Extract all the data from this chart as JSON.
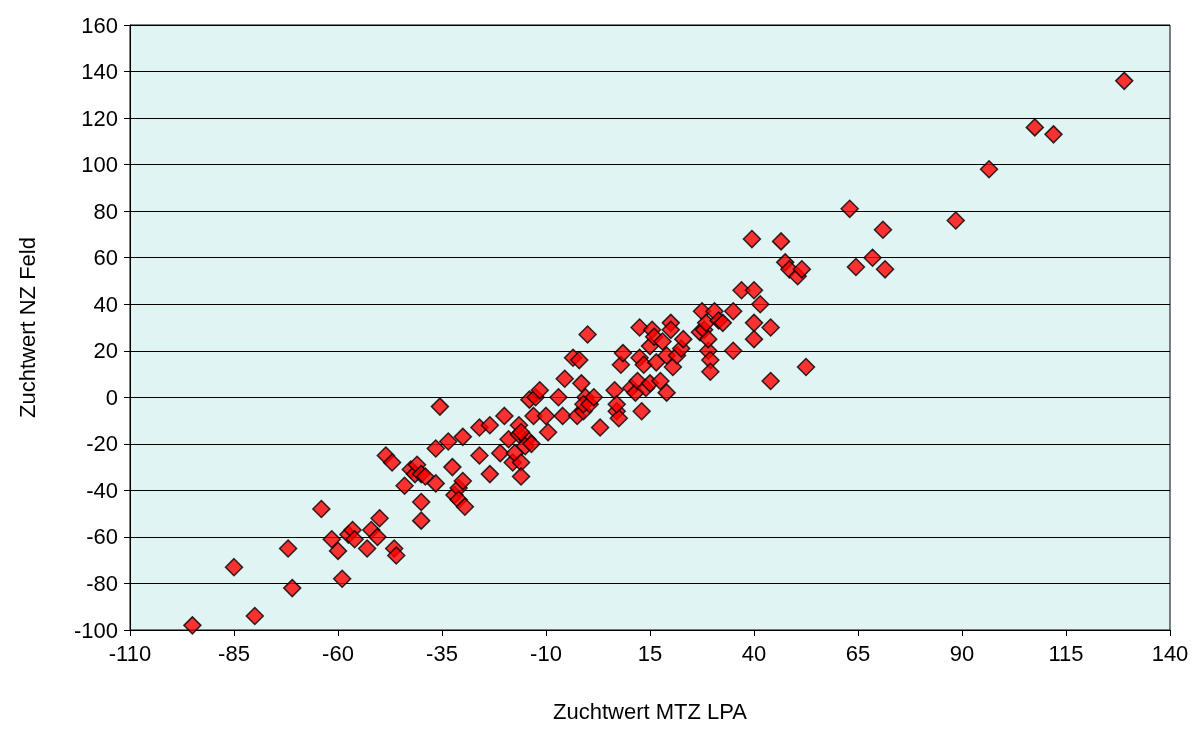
{
  "chart_data": {
    "type": "scatter",
    "xlabel": "Zuchtwert MTZ LPA",
    "ylabel": "Zuchtwert NZ Feld",
    "xlim": [
      -110,
      140
    ],
    "xticks": [
      -110,
      -85,
      -60,
      -35,
      -10,
      15,
      40,
      65,
      90,
      115,
      140
    ],
    "ylim": [
      -100,
      160
    ],
    "yticks": [
      -100,
      -80,
      -60,
      -40,
      -20,
      0,
      20,
      40,
      60,
      80,
      100,
      120,
      140,
      160
    ],
    "grid": "y",
    "marker": "diamond",
    "series": [
      {
        "color": "#ff0000",
        "x": [
          -95,
          -85,
          -80,
          -72,
          -71,
          -64,
          -61.5,
          -60,
          -59,
          -57.5,
          -56.5,
          -56,
          -53,
          -52,
          -50.5,
          -50,
          -48.5,
          -47,
          -46.5,
          -46,
          -44,
          -42.5,
          -41.5,
          -41,
          -40,
          -40,
          -40,
          -39,
          -36.5,
          -36.5,
          -35.5,
          -33.5,
          -32.5,
          -32,
          -31,
          -31,
          -30,
          -30,
          -29.5,
          -26,
          -26,
          -23.5,
          -23.5,
          -21,
          -20,
          -19,
          -18,
          -17.5,
          -16.5,
          -16.5,
          -16,
          -16,
          -14.5,
          -16,
          -15,
          -13,
          -13.5,
          -14,
          -12.5,
          -11.5,
          -10,
          -9.5,
          -7,
          -6,
          -5.5,
          -3.5,
          -2,
          -2.5,
          -1,
          -1.5,
          -0.5,
          -1,
          0,
          0.5,
          1.5,
          3,
          6.5,
          7,
          7.5,
          8,
          8.5,
          7,
          10.5,
          11.5,
          12.5,
          12,
          12.5,
          13,
          13.5,
          14,
          15,
          15,
          15.5,
          16,
          16.5,
          17.5,
          18,
          19,
          19,
          20,
          20,
          20.5,
          21.5,
          22.5,
          23,
          27,
          27.5,
          28,
          28.5,
          29,
          29,
          29.5,
          29.5,
          30.5,
          31.5,
          32.5,
          35,
          35,
          37,
          39.5,
          40,
          40,
          40,
          41.5,
          44,
          44,
          46.5,
          47.5,
          48.5,
          50.5,
          51.5,
          52.5,
          63,
          64.5,
          68.5,
          71,
          71.5,
          88.5,
          96.5,
          107.5,
          112,
          129
        ],
        "values": [
          -98,
          -73,
          -94,
          -65,
          -82,
          -48,
          -61,
          -66,
          -78,
          -59,
          -57,
          -61,
          -65,
          -57,
          -60,
          -52,
          -25,
          -28,
          -65,
          -68,
          -38,
          -31,
          -33,
          -29,
          -33,
          -45,
          -53,
          -34,
          -37,
          -22,
          -4,
          -19,
          -30,
          -42,
          -39,
          -44,
          -36,
          -17,
          -47,
          -13,
          -25,
          -12,
          -33,
          -24,
          -8,
          -18,
          -28,
          -24,
          -16,
          -12,
          -28,
          -34,
          -18,
          -15,
          -21,
          -8,
          -20,
          -1,
          0,
          3,
          -8,
          -15,
          0,
          -8,
          8,
          17,
          16,
          -8,
          -6,
          6,
          0,
          -3,
          27,
          -3,
          0,
          -13,
          3,
          -6,
          -9,
          14,
          19,
          -3,
          4,
          2,
          30,
          7,
          17,
          -6,
          14,
          4,
          6,
          22,
          29,
          26,
          15,
          7,
          24,
          2,
          18,
          32,
          29,
          13,
          18,
          21,
          25,
          28,
          37,
          29,
          32,
          20,
          25,
          16,
          11,
          37,
          33,
          32,
          20,
          37,
          46,
          68,
          46,
          25,
          32,
          40,
          30,
          7,
          67,
          58,
          55,
          52,
          55,
          13,
          81,
          56,
          60,
          72,
          55,
          76,
          98,
          116,
          113,
          136
        ]
      }
    ]
  }
}
